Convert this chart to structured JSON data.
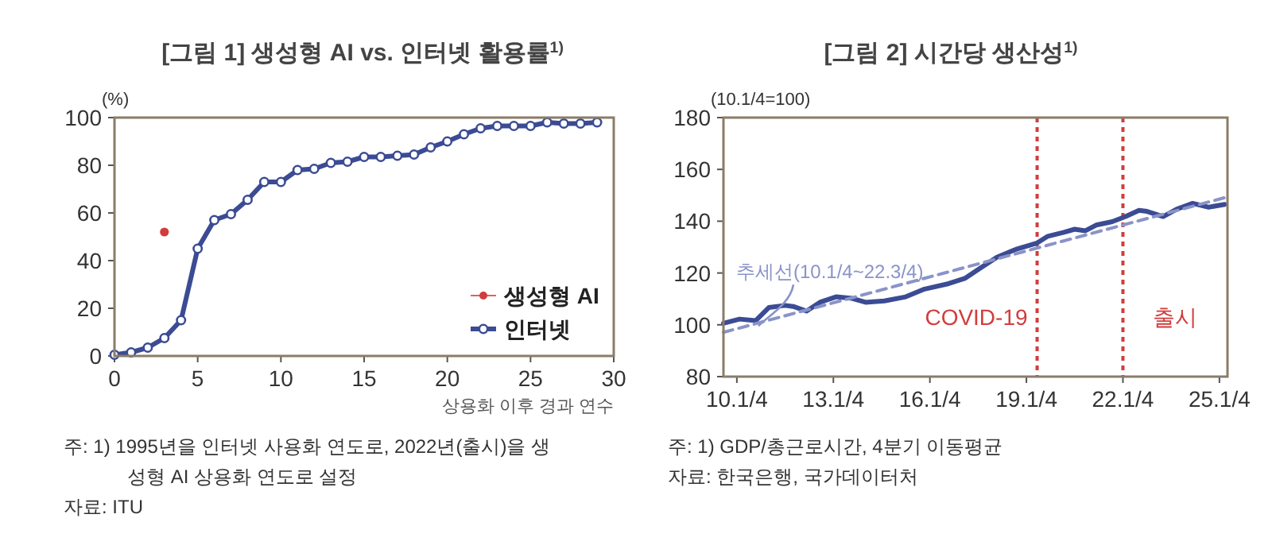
{
  "chart_data": [
    {
      "type": "line",
      "title": "[그림 1] 생성형 AI vs. 인터넷 활용률$^{1)}$",
      "xlabel": "상용화 이후 경과 연수",
      "ylabel": "(%)",
      "xlim": [
        0,
        30
      ],
      "xticks": [
        0,
        5,
        10,
        15,
        20,
        25,
        30
      ],
      "ylim": [
        0,
        100
      ],
      "yticks": [
        0,
        20,
        40,
        60,
        80,
        100
      ],
      "legend": "bottom right",
      "series": [
        {
          "name": "생성형 AI",
          "type": "scatter",
          "marker": "circle",
          "color": "#d23c3c",
          "x": [
            3
          ],
          "values": [
            52
          ]
        },
        {
          "name": "인터넷",
          "marker": "circle",
          "color": "#3b4b94",
          "x": [
            0,
            1,
            2,
            3,
            4,
            5,
            6,
            7,
            8,
            9,
            10,
            11,
            12,
            13,
            14,
            15,
            16,
            17,
            18,
            19,
            20,
            21,
            22,
            23,
            24,
            25,
            26,
            27,
            28,
            29
          ],
          "values": [
            0.5,
            1.5,
            3.5,
            7.5,
            15,
            45,
            57,
            59.5,
            65.5,
            73,
            73,
            78,
            78.5,
            81,
            81.5,
            83.5,
            83.5,
            84,
            84.5,
            87.5,
            90,
            93,
            95.5,
            96.5,
            96.5,
            96.5,
            98,
            97.5,
            97.5,
            98
          ]
        }
      ],
      "annotations": [
        "주: 1) 1995년을 인터넷 사용화 연도로, 2022년(출시)을 생성형 AI 상용화 연도로 설정",
        "자료: ITU"
      ]
    },
    {
      "type": "line",
      "title": "[그림 2] 시간당 생산성$^{1)}$",
      "ylabel": "(10.1/4=100)",
      "xlim": [
        "2009-08",
        "2025-04"
      ],
      "xticks": [
        {
          "value": "2010-01",
          "label": "10.1/4"
        },
        {
          "value": "2013-01",
          "label": "13.1/4"
        },
        {
          "value": "2016-01",
          "label": "16.1/4"
        },
        {
          "value": "2019-01",
          "label": "19.1/4"
        },
        {
          "value": "2022-01",
          "label": "22.1/4"
        },
        {
          "value": "2025-01",
          "label": "25.1/4"
        }
      ],
      "ylim": [
        80,
        180
      ],
      "yticks": [
        80,
        100,
        120,
        140,
        160,
        180
      ],
      "series": [
        {
          "color": "#3b4b94",
          "x": [
            "2009-08",
            "2010-02",
            "2010-08",
            "2011-01",
            "2011-07",
            "2011-10",
            "2012-03",
            "2012-08",
            "2013-02",
            "2013-08",
            "2014-01",
            "2014-08",
            "2015-04",
            "2015-11",
            "2016-08",
            "2017-02",
            "2017-08",
            "2018-02",
            "2018-09",
            "2019-05",
            "2019-09",
            "2020-03",
            "2020-07",
            "2020-11",
            "2021-03",
            "2021-09",
            "2022-02",
            "2022-07",
            "2022-10",
            "2023-04",
            "2023-09",
            "2024-03",
            "2024-09",
            "2025-03"
          ],
          "values": [
            100.6,
            102.2,
            101.6,
            106.7,
            107.5,
            107.1,
            105.3,
            108.7,
            110.8,
            110.2,
            108.7,
            109.2,
            110.8,
            113.8,
            115.9,
            117.9,
            122,
            126.1,
            129.1,
            131.6,
            134.2,
            135.7,
            136.9,
            136.3,
            138.5,
            139.8,
            141.8,
            144.2,
            143.8,
            141.8,
            144.6,
            146.9,
            145.4,
            146.5
          ]
        },
        {
          "name": "추세선(10.1/4~22.3/4)",
          "color": "#8a93c8",
          "line_style": "dashed",
          "x": [
            "2009-08",
            "2025-03"
          ],
          "values": [
            97.1,
            149.1
          ]
        }
      ],
      "ref_lines": [
        {
          "axis": "x",
          "value": "2019-05",
          "label": "COVID-19",
          "color": "#d23c3c",
          "line_style": "dotted"
        },
        {
          "axis": "x",
          "value": "2022-01",
          "label": "출시",
          "color": "#d23c3c",
          "line_style": "dotted"
        }
      ],
      "annotations": [
        "주: 1) GDP/총근로시간, 4분기 이동평균",
        "자료: 한국은행, 국가데이터처"
      ]
    }
  ]
}
